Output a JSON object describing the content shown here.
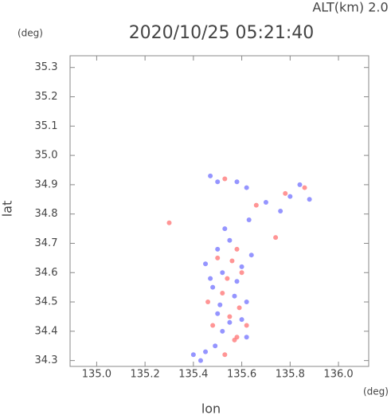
{
  "chart_data": {
    "type": "scatter",
    "title": "2020/10/25 05:21:40",
    "subtitle": "ALT(km) 2.0",
    "y_unit": "(deg)",
    "x_unit": "(deg)",
    "x_label": "lon",
    "y_label": "lat",
    "xlim": [
      134.89,
      136.125
    ],
    "ylim": [
      34.28,
      35.34
    ],
    "xticks": [
      {
        "value": 135.0,
        "label": "135.0"
      },
      135.2,
      135.4,
      135.6,
      135.8,
      {
        "value": 136.0,
        "label": "136.0"
      }
    ],
    "yticks": [
      34.3,
      34.4,
      34.5,
      34.6,
      34.7,
      34.8,
      34.9,
      {
        "value": 35.0,
        "label": "35.0"
      },
      35.1,
      35.2,
      35.3
    ],
    "series": [
      {
        "color": "#7b7bff",
        "x": [
          135.47,
          135.5,
          135.58,
          135.62,
          135.84,
          135.8,
          135.7,
          135.63,
          135.5,
          135.55,
          135.45,
          135.52,
          135.6,
          135.48,
          135.57,
          135.62,
          135.5,
          135.55,
          135.6,
          135.52,
          135.45,
          135.4,
          135.49,
          135.62,
          135.88,
          135.76,
          135.53,
          135.47,
          135.58,
          135.64,
          135.43,
          135.51
        ],
        "values": [
          34.93,
          34.91,
          34.91,
          34.89,
          34.9,
          34.86,
          34.84,
          34.78,
          34.68,
          34.71,
          34.63,
          34.6,
          34.62,
          34.55,
          34.52,
          34.5,
          34.46,
          34.43,
          34.44,
          34.4,
          34.33,
          34.32,
          34.35,
          34.38,
          34.85,
          34.81,
          34.75,
          34.58,
          34.57,
          34.66,
          34.3,
          34.49
        ]
      },
      {
        "color": "#ff7b7b",
        "x": [
          135.53,
          135.78,
          135.66,
          135.3,
          135.58,
          135.5,
          135.6,
          135.54,
          135.52,
          135.59,
          135.55,
          135.58,
          135.57,
          135.48,
          135.62,
          135.53,
          135.74,
          135.86,
          135.46,
          135.56
        ],
        "values": [
          34.92,
          34.87,
          34.83,
          34.77,
          34.68,
          34.65,
          34.6,
          34.58,
          34.53,
          34.48,
          34.45,
          34.38,
          34.37,
          34.42,
          34.42,
          34.32,
          34.72,
          34.89,
          34.5,
          34.64
        ]
      }
    ]
  }
}
